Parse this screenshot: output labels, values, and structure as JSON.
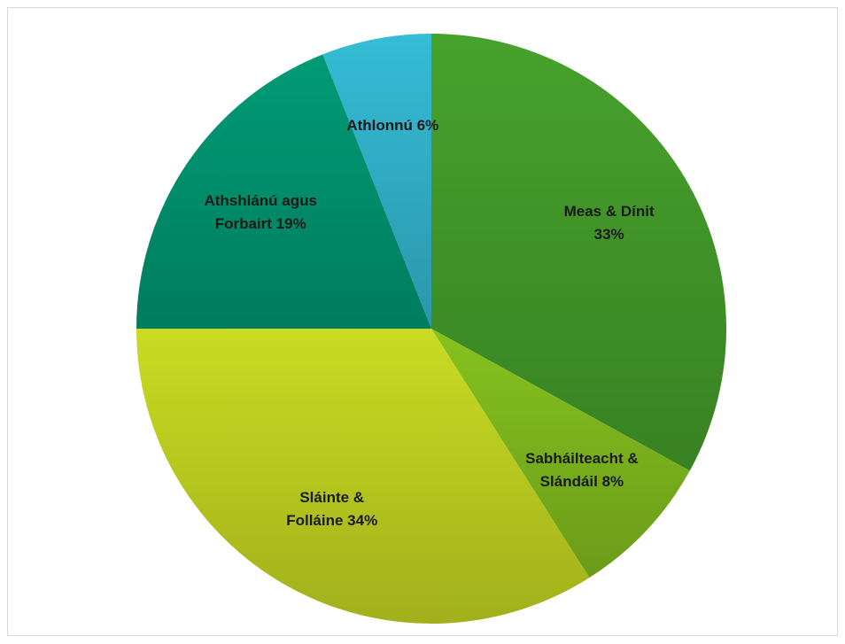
{
  "chart_data": {
    "type": "pie",
    "categories": [
      "Meas & Dínit",
      "Sabháilteacht & Slándáil",
      "Sláinte & Folláine",
      "Athshlánú agus Forbairt",
      "Athlonnú"
    ],
    "values": [
      33,
      8,
      34,
      19,
      6
    ],
    "value_labels": [
      "33%",
      "8%",
      "34%",
      "19%",
      "6%"
    ],
    "colors": [
      "#47a22c",
      "#86c21f",
      "#c9dc22",
      "#009b75",
      "#35bcd6"
    ]
  }
}
